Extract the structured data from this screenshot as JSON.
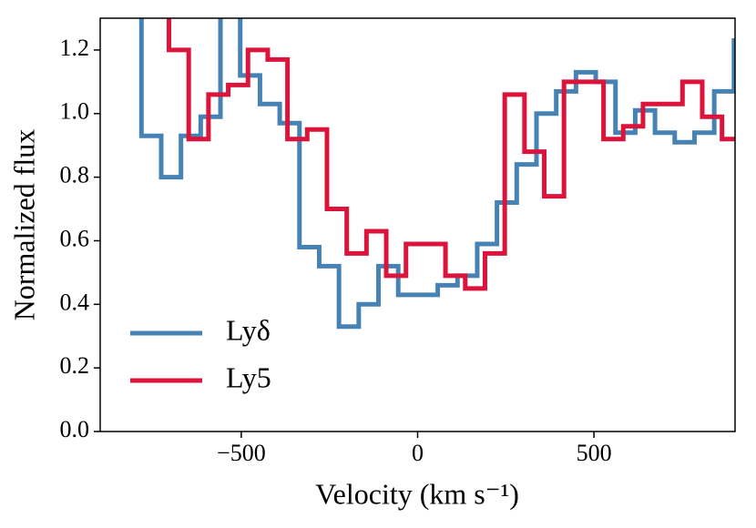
{
  "chart_data": {
    "type": "line",
    "drawstyle": "steps-mid",
    "xlabel": "Velocity (km s⁻¹)",
    "ylabel": "Normalized flux",
    "xlim": [
      -900,
      900
    ],
    "ylim": [
      0,
      1.3
    ],
    "xticks": [
      {
        "value": -500,
        "label": "−500"
      },
      0,
      500
    ],
    "yticks": [
      {
        "value": 0,
        "label": "0.0"
      },
      0.2,
      0.4,
      0.6,
      0.8,
      {
        "value": 1,
        "label": "1.0"
      },
      1.2
    ],
    "legend": "lower left",
    "series": [
      {
        "name": "Lyδ",
        "color": "#4682b4",
        "x": [
          -811,
          -755,
          -699,
          -643,
          -587,
          -531,
          -475,
          -419,
          -363,
          -307,
          -251,
          -195,
          -139,
          -83,
          -27,
          29,
          85,
          141,
          197,
          253,
          309,
          365,
          421,
          477,
          533,
          589,
          645,
          701,
          757,
          813,
          869,
          925
        ],
        "values": [
          1.45,
          0.93,
          0.8,
          0.93,
          0.99,
          1.45,
          1.12,
          1.03,
          0.97,
          0.58,
          0.52,
          0.33,
          0.4,
          0.52,
          0.43,
          0.43,
          0.46,
          0.49,
          0.59,
          0.72,
          0.84,
          1.0,
          1.07,
          1.13,
          1.1,
          0.94,
          1.01,
          0.94,
          0.91,
          0.94,
          1.07,
          1.23
        ]
      },
      {
        "name": "Ly5",
        "color": "#dc143c",
        "x": [
          -733,
          -677,
          -621,
          -565,
          -509,
          -453,
          -397,
          -341,
          -285,
          -229,
          -173,
          -117,
          -61,
          -5,
          51,
          107,
          163,
          219,
          275,
          331,
          387,
          443,
          499,
          555,
          611,
          667,
          723,
          779,
          835,
          891,
          947
        ],
        "values": [
          1.45,
          1.2,
          0.92,
          1.06,
          1.09,
          1.2,
          1.17,
          0.92,
          0.95,
          0.7,
          0.56,
          0.63,
          0.49,
          0.59,
          0.59,
          0.49,
          0.45,
          0.56,
          1.06,
          0.88,
          0.74,
          1.1,
          1.1,
          0.92,
          0.96,
          1.03,
          1.03,
          1.1,
          0.99,
          0.92,
          0.92
        ]
      }
    ]
  }
}
